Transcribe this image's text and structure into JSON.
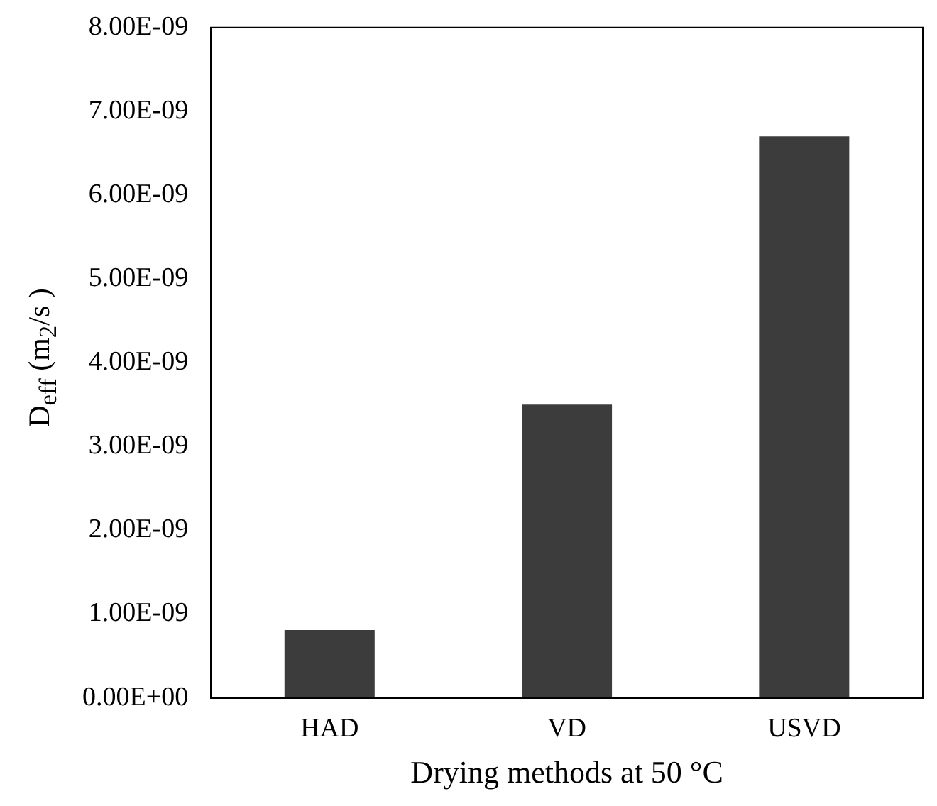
{
  "chart_data": {
    "type": "bar",
    "xlabel": "Drying methods at 50 °C",
    "ylabel": "D$_{eff}$ (m$_{2}$/s )",
    "categories": [
      "HAD",
      "VD",
      "USVD"
    ],
    "values": [
      8.1e-10,
      3.5e-09,
      6.7e-09
    ],
    "color": "#3c3c3c",
    "ylim": [
      0,
      8e-09
    ],
    "yticks": [
      {
        "value": 0,
        "label": "0.00E+00"
      },
      {
        "value": 1e-09,
        "label": "1.00E-09"
      },
      {
        "value": 2e-09,
        "label": "2.00E-09"
      },
      {
        "value": 3e-09,
        "label": "3.00E-09"
      },
      {
        "value": 4e-09,
        "label": "4.00E-09"
      },
      {
        "value": 5e-09,
        "label": "5.00E-09"
      },
      {
        "value": 6e-09,
        "label": "6.00E-09"
      },
      {
        "value": 7e-09,
        "label": "7.00E-09"
      },
      {
        "value": 8e-09,
        "label": "8.00E-09"
      }
    ],
    "grid": false,
    "legend": false
  }
}
